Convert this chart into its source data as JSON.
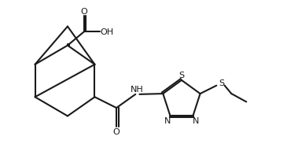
{
  "bg_color": "#ffffff",
  "line_color": "#1a1a1a",
  "line_width": 1.5,
  "font_size": 8,
  "bond_color": "#1a1a1a"
}
